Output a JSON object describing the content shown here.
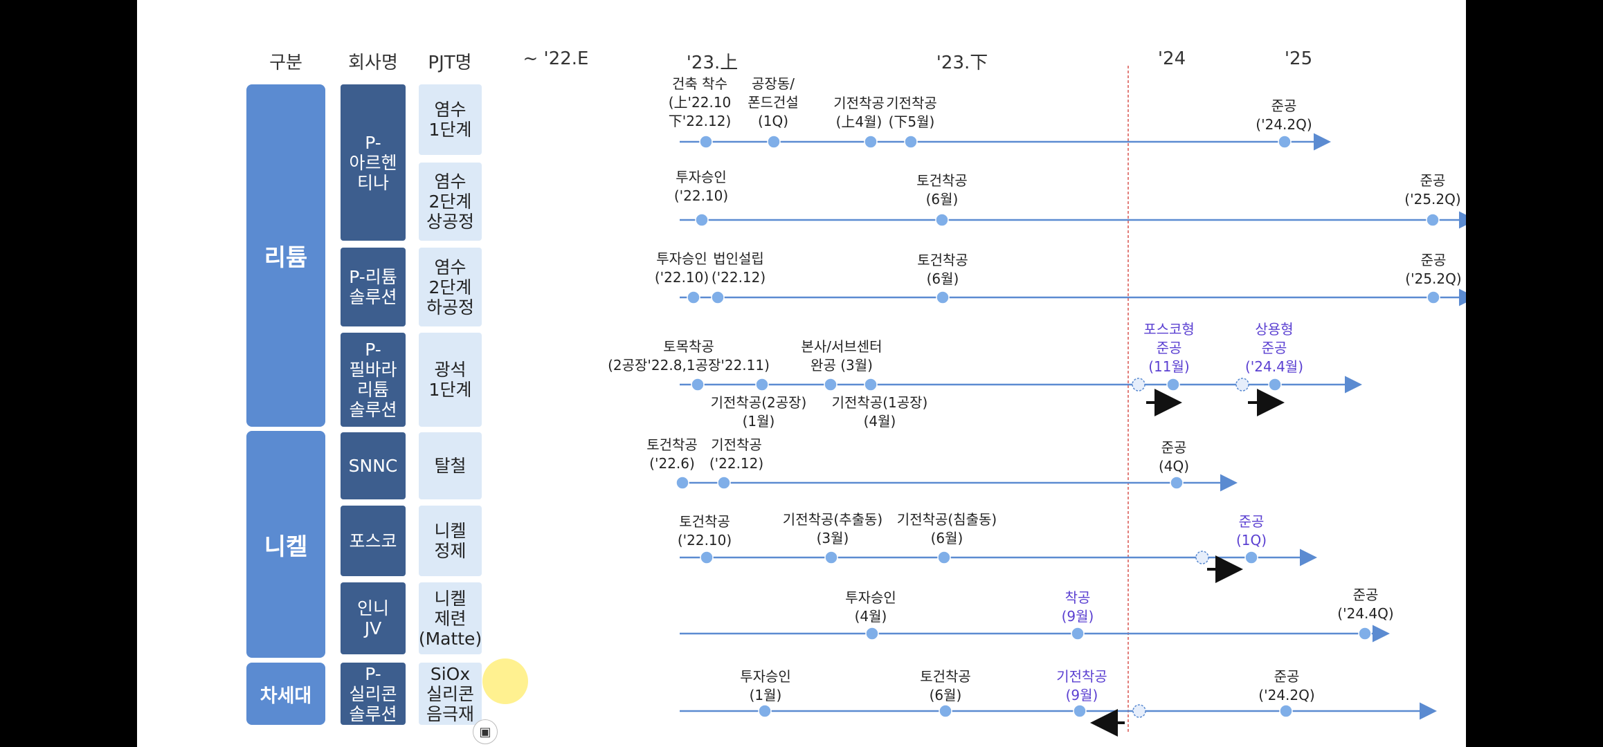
{
  "headers": {
    "category": "구분",
    "company": "회사명",
    "project": "PJT명",
    "periods": [
      "~ '22.E",
      "'23.上",
      "'23.下",
      "'24",
      "'25"
    ]
  },
  "categories": [
    {
      "label": "리튬"
    },
    {
      "label": "니켈"
    },
    {
      "label": "차세대"
    }
  ],
  "companies": [
    {
      "label": "P-\n아르헨\n티나"
    },
    {
      "label": "P-리튬\n솔루션"
    },
    {
      "label": "P-\n필바라\n리튬\n솔루션"
    },
    {
      "label": "SNNC"
    },
    {
      "label": "포스코"
    },
    {
      "label": "인니\nJV"
    },
    {
      "label": "P-\n실리콘\n솔루션"
    }
  ],
  "projects": [
    {
      "label": "염수\n1단계"
    },
    {
      "label": "염수\n2단계\n상공정"
    },
    {
      "label": "염수\n2단계\n하공정"
    },
    {
      "label": "광석\n1단계"
    },
    {
      "label": "탈철"
    },
    {
      "label": "니켈\n정제"
    },
    {
      "label": "니켈\n제련\n(Matte)"
    },
    {
      "label": "SiOx\n실리콘\n음극재"
    }
  ],
  "rows": [
    {
      "milestones": [
        {
          "label": "건축 착수\n(上'22.10\n下'22.12)"
        },
        {
          "label": "공장동/\n폰드건설\n(1Q)"
        },
        {
          "label": "기전착공\n(上4월)"
        },
        {
          "label": "기전착공\n(下5월)"
        },
        {
          "label": "준공\n('24.2Q)"
        }
      ]
    },
    {
      "milestones": [
        {
          "label": "투자승인\n('22.10)"
        },
        {
          "label": "토건착공\n(6월)"
        },
        {
          "label": "준공\n('25.2Q)"
        }
      ]
    },
    {
      "milestones": [
        {
          "label": "투자승인\n('22.10)"
        },
        {
          "label": "법인설립\n('22.12)"
        },
        {
          "label": "토건착공\n(6월)"
        },
        {
          "label": "준공\n('25.2Q)"
        }
      ]
    },
    {
      "milestones": [
        {
          "label": "토목착공\n(2공장'22.8,1공장'22.11)"
        },
        {
          "label": "기전착공(2공장)\n(1월)"
        },
        {
          "label": "본사/서브센터\n완공 (3월)"
        },
        {
          "label": "기전착공(1공장)\n(4월)"
        },
        {
          "label": "포스코형\n준공\n(11월)"
        },
        {
          "label": "상용형\n준공\n('24.4월)"
        }
      ]
    },
    {
      "milestones": [
        {
          "label": "토건착공\n('22.6)"
        },
        {
          "label": "기전착공\n('22.12)"
        },
        {
          "label": "준공\n(4Q)"
        }
      ]
    },
    {
      "milestones": [
        {
          "label": "토건착공\n('22.10)"
        },
        {
          "label": "기전착공(추출동)\n(3월)"
        },
        {
          "label": "기전착공(침출동)\n(6월)"
        },
        {
          "label": "준공\n(1Q)"
        }
      ]
    },
    {
      "milestones": [
        {
          "label": "투자승인\n(4월)"
        },
        {
          "label": "착공\n(9월)"
        },
        {
          "label": "준공\n('24.4Q)"
        }
      ]
    },
    {
      "milestones": [
        {
          "label": "투자승인\n(1월)"
        },
        {
          "label": "토건착공\n(6월)"
        },
        {
          "label": "기전착공\n(9월)"
        },
        {
          "label": "준공\n('24.2Q)"
        }
      ]
    }
  ],
  "colors": {
    "category": "#5b8bd1",
    "company": "#3d5e8e",
    "project": "#dce9f7",
    "line": "#5b8bd1",
    "milestone": "#7faee8",
    "accent": "#5a3fd1",
    "divider": "#d9534f"
  },
  "icons": {
    "recorder": "video-camera-icon"
  }
}
